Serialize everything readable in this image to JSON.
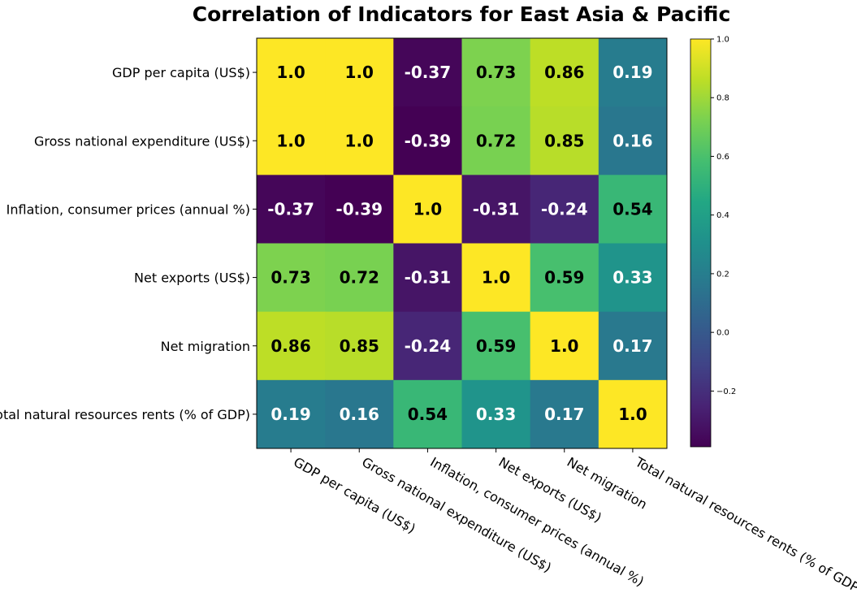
{
  "chart_data": {
    "type": "heatmap",
    "title": "Correlation of Indicators for East Asia & Pacific",
    "variables": [
      "GDP per capita (US$)",
      "Gross national expenditure (US$)",
      "Inflation, consumer prices (annual %)",
      "Net exports (US$)",
      "Net migration",
      "Total natural resources rents (% of GDP)"
    ],
    "matrix": [
      [
        1.0,
        1.0,
        -0.37,
        0.73,
        0.86,
        0.19
      ],
      [
        1.0,
        1.0,
        -0.39,
        0.72,
        0.85,
        0.16
      ],
      [
        -0.37,
        -0.39,
        1.0,
        -0.31,
        -0.24,
        0.54
      ],
      [
        0.73,
        0.72,
        -0.31,
        1.0,
        0.59,
        0.33
      ],
      [
        0.86,
        0.85,
        -0.24,
        0.59,
        1.0,
        0.17
      ],
      [
        0.19,
        0.16,
        0.54,
        0.33,
        0.17,
        1.0
      ]
    ],
    "cell_labels": [
      [
        "1.0",
        "1.0",
        "-0.37",
        "0.73",
        "0.86",
        "0.19"
      ],
      [
        "1.0",
        "1.0",
        "-0.39",
        "0.72",
        "0.85",
        "0.16"
      ],
      [
        "-0.37",
        "-0.39",
        "1.0",
        "-0.31",
        "-0.24",
        "0.54"
      ],
      [
        "0.73",
        "0.72",
        "-0.31",
        "1.0",
        "0.59",
        "0.33"
      ],
      [
        "0.86",
        "0.85",
        "-0.24",
        "0.59",
        "1.0",
        "0.17"
      ],
      [
        "0.19",
        "0.16",
        "0.54",
        "0.33",
        "0.17",
        "1.0"
      ]
    ],
    "colormap": "viridis",
    "color_range": [
      -0.39,
      1.0
    ],
    "colorbar_ticks": [
      1.0,
      0.8,
      0.6,
      0.4,
      0.2,
      0.0,
      -0.2
    ],
    "colorbar_tick_labels": [
      "1.0",
      "0.8",
      "0.6",
      "0.4",
      "0.2",
      "0.0",
      "−0.2"
    ],
    "xtick_rotation": "slanted downward",
    "colorbar_position": "right"
  }
}
